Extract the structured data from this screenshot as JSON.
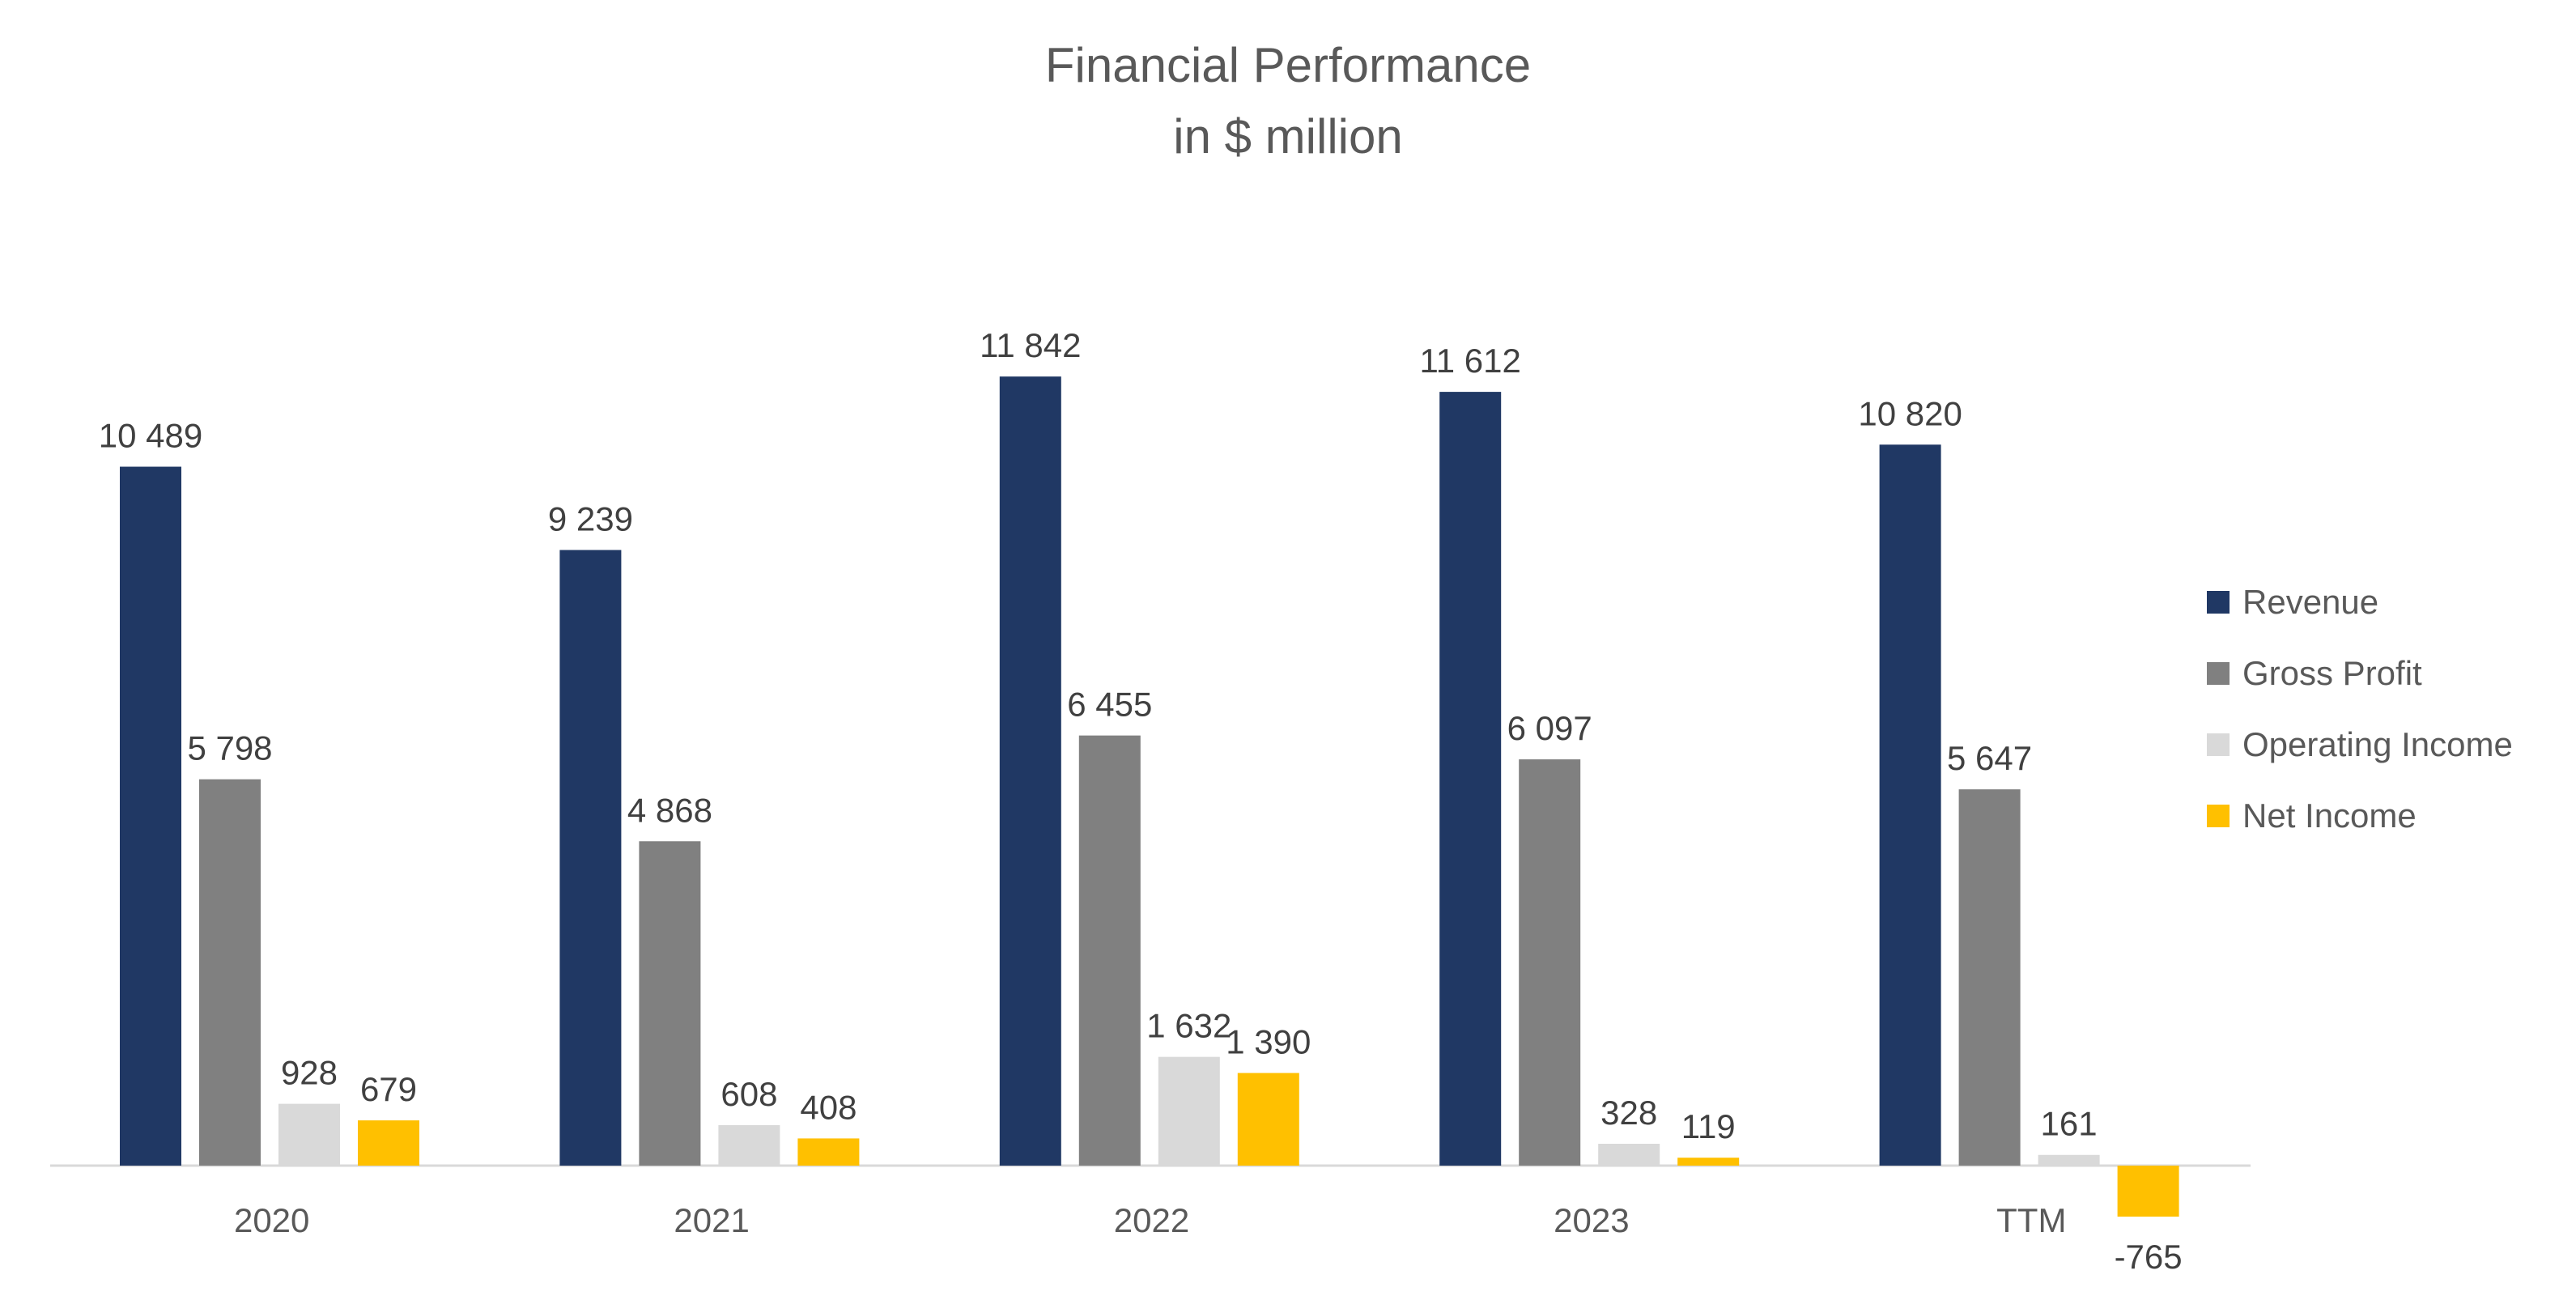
{
  "chart_data": {
    "type": "bar",
    "title": "Financial Performance",
    "subtitle": "in $ million",
    "categories": [
      "2020",
      "2021",
      "2022",
      "2023",
      "TTM"
    ],
    "series": [
      {
        "name": "Revenue",
        "color": "#203864",
        "values": [
          10489,
          9239,
          11842,
          11612,
          10820
        ],
        "labels": [
          "10 489",
          "9 239",
          "11 842",
          "11 612",
          "10 820"
        ]
      },
      {
        "name": "Gross Profit",
        "color": "#808080",
        "values": [
          5798,
          4868,
          6455,
          6097,
          5647
        ],
        "labels": [
          "5 798",
          "4 868",
          "6 455",
          "6 097",
          "5 647"
        ]
      },
      {
        "name": "Operating Income",
        "color": "#D9D9D9",
        "values": [
          928,
          608,
          1632,
          328,
          161
        ],
        "labels": [
          "928",
          "608",
          "1 632",
          "328",
          "161"
        ]
      },
      {
        "name": "Net Income",
        "color": "#FFC000",
        "values": [
          679,
          408,
          1390,
          119,
          -765
        ],
        "labels": [
          "679",
          "408",
          "1 390",
          "119",
          "-765"
        ]
      }
    ],
    "ylim": [
      -765,
      11842
    ],
    "grid": false,
    "legend": "right"
  }
}
